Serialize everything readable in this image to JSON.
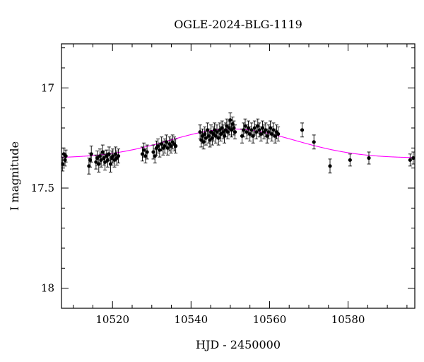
{
  "chart_data": {
    "type": "scatter",
    "title": "OGLE-2024-BLG-1119",
    "xlabel": "HJD - 2450000",
    "ylabel": "I magnitude",
    "xlim": [
      10507,
      10597
    ],
    "ylim": [
      18.1,
      16.78
    ],
    "y_inverted": true,
    "x_major_ticks": [
      10520,
      10540,
      10560,
      10580
    ],
    "x_minor_step": 5,
    "y_major_ticks": [
      17,
      17.5,
      18
    ],
    "y_tick_labels": [
      "17",
      "17.5",
      "18"
    ],
    "y_minor_step": 0.1,
    "grid": false,
    "point_color": "#000000",
    "model_color": "#ff00ff",
    "model": {
      "t0": 10550.5,
      "base_mag": 17.35,
      "peak_mag": 17.205,
      "tau": 16
    },
    "series": [
      {
        "values": [
          [
            10507.3,
            17.38,
            0.035
          ],
          [
            10507.6,
            17.33,
            0.03
          ],
          [
            10507.9,
            17.36,
            0.03
          ],
          [
            10508.1,
            17.34,
            0.03
          ],
          [
            10514.0,
            17.39,
            0.04
          ],
          [
            10514.3,
            17.36,
            0.035
          ],
          [
            10514.6,
            17.33,
            0.04
          ],
          [
            10515.8,
            17.37,
            0.035
          ],
          [
            10516.1,
            17.35,
            0.035
          ],
          [
            10516.5,
            17.38,
            0.04
          ],
          [
            10516.8,
            17.34,
            0.035
          ],
          [
            10517.1,
            17.36,
            0.035
          ],
          [
            10517.5,
            17.32,
            0.035
          ],
          [
            10517.8,
            17.35,
            0.035
          ],
          [
            10518.1,
            17.37,
            0.04
          ],
          [
            10518.5,
            17.34,
            0.03
          ],
          [
            10518.8,
            17.36,
            0.035
          ],
          [
            10519.1,
            17.33,
            0.035
          ],
          [
            10519.5,
            17.38,
            0.04
          ],
          [
            10519.8,
            17.35,
            0.035
          ],
          [
            10520.1,
            17.34,
            0.035
          ],
          [
            10520.5,
            17.36,
            0.035
          ],
          [
            10520.8,
            17.33,
            0.035
          ],
          [
            10521.1,
            17.35,
            0.035
          ],
          [
            10521.5,
            17.34,
            0.035
          ],
          [
            10527.6,
            17.33,
            0.035
          ],
          [
            10528.0,
            17.31,
            0.035
          ],
          [
            10528.4,
            17.34,
            0.035
          ],
          [
            10528.8,
            17.32,
            0.035
          ],
          [
            10530.4,
            17.32,
            0.035
          ],
          [
            10530.8,
            17.34,
            0.035
          ],
          [
            10531.2,
            17.3,
            0.035
          ],
          [
            10531.6,
            17.29,
            0.035
          ],
          [
            10532.0,
            17.31,
            0.035
          ],
          [
            10532.5,
            17.28,
            0.035
          ],
          [
            10532.9,
            17.3,
            0.035
          ],
          [
            10533.3,
            17.29,
            0.035
          ],
          [
            10533.7,
            17.27,
            0.035
          ],
          [
            10534.1,
            17.3,
            0.035
          ],
          [
            10534.5,
            17.28,
            0.035
          ],
          [
            10534.9,
            17.29,
            0.035
          ],
          [
            10535.3,
            17.27,
            0.035
          ],
          [
            10535.7,
            17.28,
            0.035
          ],
          [
            10536.1,
            17.29,
            0.035
          ],
          [
            10542.3,
            17.22,
            0.035
          ],
          [
            10542.6,
            17.26,
            0.035
          ],
          [
            10542.9,
            17.24,
            0.035
          ],
          [
            10543.2,
            17.27,
            0.035
          ],
          [
            10543.5,
            17.23,
            0.035
          ],
          [
            10543.8,
            17.25,
            0.035
          ],
          [
            10544.2,
            17.21,
            0.035
          ],
          [
            10544.5,
            17.24,
            0.035
          ],
          [
            10544.8,
            17.26,
            0.035
          ],
          [
            10545.1,
            17.22,
            0.035
          ],
          [
            10545.4,
            17.25,
            0.035
          ],
          [
            10545.7,
            17.23,
            0.035
          ],
          [
            10546.0,
            17.21,
            0.035
          ],
          [
            10546.3,
            17.24,
            0.035
          ],
          [
            10546.6,
            17.22,
            0.035
          ],
          [
            10547.0,
            17.25,
            0.035
          ],
          [
            10547.3,
            17.21,
            0.035
          ],
          [
            10547.6,
            17.23,
            0.035
          ],
          [
            10547.9,
            17.2,
            0.035
          ],
          [
            10548.2,
            17.22,
            0.035
          ],
          [
            10548.5,
            17.24,
            0.035
          ],
          [
            10548.8,
            17.21,
            0.035
          ],
          [
            10549.1,
            17.19,
            0.035
          ],
          [
            10549.4,
            17.22,
            0.035
          ],
          [
            10549.7,
            17.2,
            0.035
          ],
          [
            10550.0,
            17.16,
            0.035
          ],
          [
            10550.3,
            17.21,
            0.035
          ],
          [
            10550.6,
            17.18,
            0.035
          ],
          [
            10550.9,
            17.2,
            0.035
          ],
          [
            10551.2,
            17.22,
            0.035
          ],
          [
            10553.0,
            17.24,
            0.035
          ],
          [
            10553.4,
            17.21,
            0.035
          ],
          [
            10553.8,
            17.19,
            0.035
          ],
          [
            10554.2,
            17.22,
            0.035
          ],
          [
            10554.6,
            17.2,
            0.035
          ],
          [
            10555.0,
            17.23,
            0.035
          ],
          [
            10555.4,
            17.21,
            0.035
          ],
          [
            10555.8,
            17.24,
            0.035
          ],
          [
            10556.2,
            17.2,
            0.035
          ],
          [
            10556.6,
            17.22,
            0.035
          ],
          [
            10557.0,
            17.19,
            0.035
          ],
          [
            10557.4,
            17.21,
            0.035
          ],
          [
            10557.8,
            17.23,
            0.035
          ],
          [
            10558.2,
            17.2,
            0.035
          ],
          [
            10558.6,
            17.22,
            0.035
          ],
          [
            10559.0,
            17.21,
            0.035
          ],
          [
            10559.4,
            17.24,
            0.035
          ],
          [
            10559.8,
            17.22,
            0.035
          ],
          [
            10560.2,
            17.2,
            0.035
          ],
          [
            10560.6,
            17.23,
            0.035
          ],
          [
            10561.0,
            17.21,
            0.035
          ],
          [
            10561.4,
            17.24,
            0.035
          ],
          [
            10561.8,
            17.22,
            0.035
          ],
          [
            10562.2,
            17.23,
            0.035
          ],
          [
            10568.3,
            17.21,
            0.035
          ],
          [
            10571.3,
            17.27,
            0.035
          ],
          [
            10575.4,
            17.39,
            0.035
          ],
          [
            10580.5,
            17.36,
            0.03
          ],
          [
            10585.3,
            17.35,
            0.03
          ],
          [
            10595.8,
            17.36,
            0.03
          ],
          [
            10596.6,
            17.35,
            0.03
          ]
        ]
      }
    ]
  }
}
